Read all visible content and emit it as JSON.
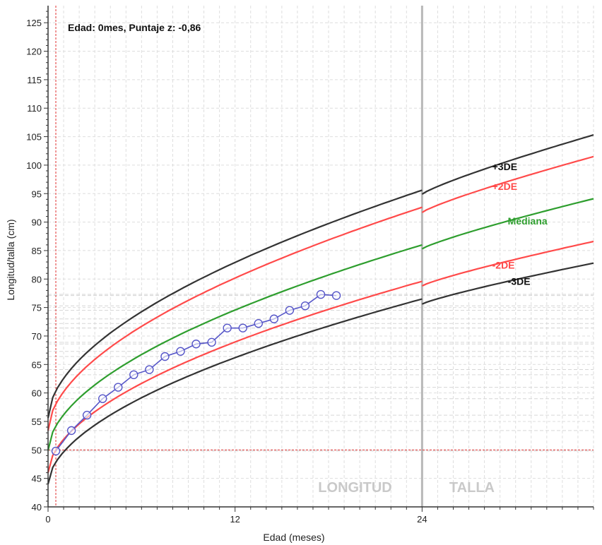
{
  "chart_data": {
    "type": "line",
    "info_text": "Edad: 0mes, Puntaje z: -0,86",
    "xlabel": "Edad (meses)",
    "ylabel": "Longitud/talla (cm)",
    "xlim": [
      0,
      35
    ],
    "ylim": [
      40,
      128
    ],
    "x_ticks": [
      "0",
      "12",
      "24"
    ],
    "x_tick_values": [
      0,
      12,
      24
    ],
    "y_ticks": [
      40,
      45,
      50,
      55,
      60,
      65,
      70,
      75,
      80,
      85,
      90,
      95,
      100,
      105,
      110,
      115,
      120,
      125
    ],
    "grid": true,
    "reference_lines": {
      "x": 0.5,
      "y": 50,
      "color": "#e03030"
    },
    "divider_x": 24,
    "section_labels": [
      {
        "text": "LONGITUD",
        "x": 19.7,
        "y": 43.5
      },
      {
        "text": "TALLA",
        "x": 27.2,
        "y": 43.5
      }
    ],
    "curves": [
      {
        "name": "+3DE",
        "color": "#333333",
        "label_x": 28.5,
        "seg1": {
          "v0": 55.6,
          "v24": 95.6
        },
        "seg2": {
          "v0": 94.9,
          "v35": 105.3
        }
      },
      {
        "name": "+2DE",
        "color": "#ff4a4a",
        "label_x": 28.5,
        "seg1": {
          "v0": 53.4,
          "v24": 92.6
        },
        "seg2": {
          "v0": 91.7,
          "v35": 101.5
        }
      },
      {
        "name": "Mediana",
        "color": "#2e9e2e",
        "label_x": 29.5,
        "seg1": {
          "v0": 49.9,
          "v24": 86.0
        },
        "seg2": {
          "v0": 85.3,
          "v35": 94.1
        }
      },
      {
        "name": "-2DE",
        "color": "#ff4a4a",
        "label_x": 28.5,
        "seg1": {
          "v0": 46.0,
          "v24": 79.6
        },
        "seg2": {
          "v0": 78.8,
          "v35": 86.6
        }
      },
      {
        "name": "-3DE",
        "color": "#333333",
        "label_x": 29.5,
        "seg1": {
          "v0": 44.0,
          "v24": 76.5
        },
        "seg2": {
          "v0": 75.6,
          "v35": 82.8
        }
      }
    ],
    "series": [
      {
        "color": "#5555c8",
        "x": [
          0.5,
          1.5,
          2.5,
          3.5,
          4.5,
          5.5,
          6.5,
          7.5,
          8.5,
          9.5,
          10.5,
          11.5,
          12.5,
          13.5,
          14.5,
          15.5,
          16.5,
          17.5,
          18.5
        ],
        "y": [
          49.8,
          53.4,
          56.1,
          59.0,
          61.0,
          63.2,
          64.1,
          66.4,
          67.3,
          68.6,
          68.9,
          71.4,
          71.4,
          72.2,
          73.0,
          74.5,
          75.3,
          77.3,
          77.1
        ]
      }
    ],
    "colors": {
      "grid_major": "#cfcfcf",
      "grid_minor": "#dedede",
      "divider": "#b8b8b8",
      "axis": "#333333"
    }
  }
}
